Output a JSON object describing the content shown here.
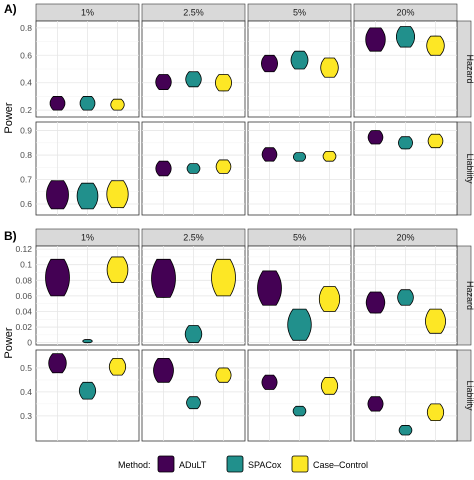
{
  "chart_data": [
    {
      "tag": "A)",
      "type": "violin",
      "ylabel": "Power",
      "columns": [
        "1%",
        "2.5%",
        "5%",
        "20%"
      ],
      "rows": [
        {
          "label": "Hazard",
          "ylim": [
            0.15,
            0.85
          ],
          "ticks": [
            0.2,
            0.4,
            0.6,
            0.8
          ]
        },
        {
          "label": "Liability",
          "ylim": [
            0.555,
            0.935
          ],
          "ticks": [
            0.6,
            0.7,
            0.8,
            0.9
          ]
        }
      ],
      "series": [
        {
          "name": "ADuLT",
          "values": {
            "Hazard": [
              [
                0.2,
                0.3
              ],
              [
                0.35,
                0.46
              ],
              [
                0.48,
                0.6
              ],
              [
                0.63,
                0.8
              ]
            ],
            "Liability": [
              [
                0.58,
                0.695
              ],
              [
                0.715,
                0.775
              ],
              [
                0.775,
                0.83
              ],
              [
                0.845,
                0.9
              ]
            ]
          }
        },
        {
          "name": "SPACox",
          "values": {
            "Hazard": [
              [
                0.2,
                0.3
              ],
              [
                0.37,
                0.48
              ],
              [
                0.5,
                0.63
              ],
              [
                0.66,
                0.81
              ]
            ],
            "Liability": [
              [
                0.58,
                0.685
              ],
              [
                0.725,
                0.765
              ],
              [
                0.775,
                0.81
              ],
              [
                0.825,
                0.875
              ]
            ]
          }
        },
        {
          "name": "Case–Control",
          "values": {
            "Hazard": [
              [
                0.2,
                0.28
              ],
              [
                0.34,
                0.46
              ],
              [
                0.44,
                0.58
              ],
              [
                0.6,
                0.74
              ]
            ],
            "Liability": [
              [
                0.585,
                0.695
              ],
              [
                0.725,
                0.78
              ],
              [
                0.775,
                0.815
              ],
              [
                0.83,
                0.885
              ]
            ]
          }
        }
      ]
    },
    {
      "tag": "B)",
      "type": "violin",
      "ylabel": "Power",
      "columns": [
        "1%",
        "2.5%",
        "5%",
        "20%"
      ],
      "rows": [
        {
          "label": "Hazard",
          "ylim": [
            -0.003,
            0.124
          ],
          "ticks": [
            0.0,
            0.02,
            0.04,
            0.06,
            0.08,
            0.1,
            0.12
          ]
        },
        {
          "label": "Liability",
          "ylim": [
            0.195,
            0.575
          ],
          "ticks": [
            0.3,
            0.4,
            0.5
          ]
        }
      ],
      "series": [
        {
          "name": "ADuLT",
          "values": {
            "Hazard": [
              [
                0.06,
                0.107
              ],
              [
                0.058,
                0.107
              ],
              [
                0.048,
                0.092
              ],
              [
                0.038,
                0.065
              ]
            ],
            "Liability": [
              [
                0.48,
                0.56
              ],
              [
                0.44,
                0.54
              ],
              [
                0.41,
                0.47
              ],
              [
                0.32,
                0.38
              ]
            ]
          }
        },
        {
          "name": "SPACox",
          "values": {
            "Hazard": [
              [
                0.0,
                0.004
              ],
              [
                0.0,
                0.022
              ],
              [
                0.003,
                0.043
              ],
              [
                0.048,
                0.068
              ]
            ],
            "Liability": [
              [
                0.37,
                0.44
              ],
              [
                0.33,
                0.38
              ],
              [
                0.3,
                0.34
              ],
              [
                0.22,
                0.26
              ]
            ]
          }
        },
        {
          "name": "Case–Control",
          "values": {
            "Hazard": [
              [
                0.077,
                0.11
              ],
              [
                0.06,
                0.107
              ],
              [
                0.04,
                0.072
              ],
              [
                0.012,
                0.043
              ]
            ],
            "Liability": [
              [
                0.47,
                0.54
              ],
              [
                0.44,
                0.5
              ],
              [
                0.39,
                0.46
              ],
              [
                0.28,
                0.35
              ]
            ]
          }
        }
      ]
    }
  ],
  "legend": {
    "title": "Method:",
    "position": "bottom",
    "items": [
      {
        "label": "ADuLT",
        "color": "#440154"
      },
      {
        "label": "SPACox",
        "color": "#21908C"
      },
      {
        "label": "Case–Control",
        "color": "#FDE725"
      }
    ]
  }
}
